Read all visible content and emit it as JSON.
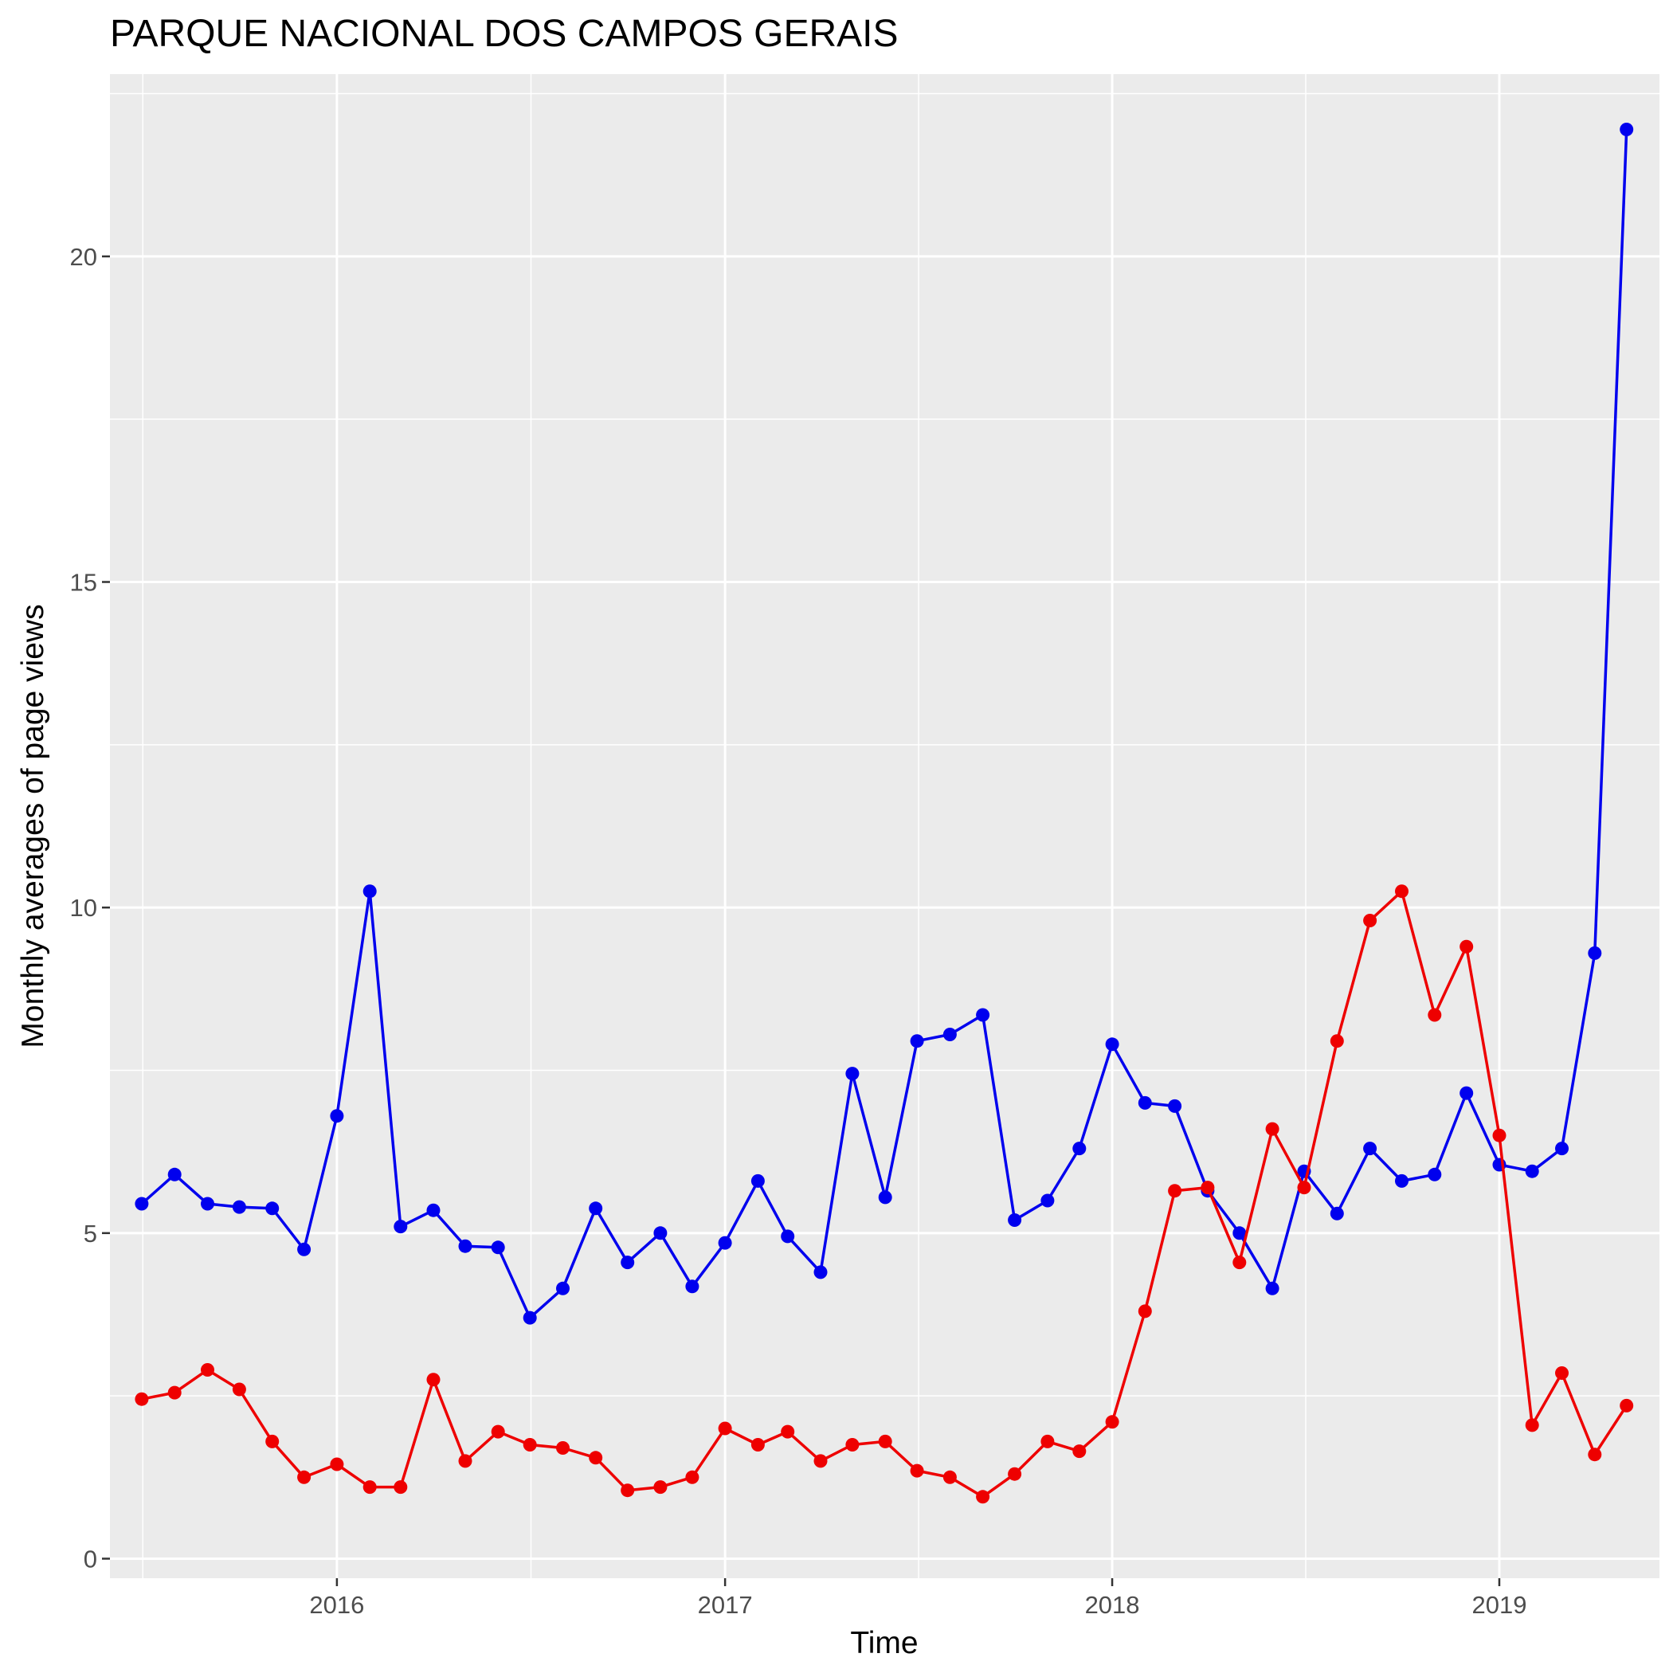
{
  "chart_data": {
    "type": "line",
    "title": "PARQUE NACIONAL DOS CAMPOS GERAIS",
    "xlabel": "Time",
    "ylabel": "Monthly averages of page views",
    "xlim": [
      "2015-06-01",
      "2019-06-01"
    ],
    "ylim": [
      -0.3,
      22.8
    ],
    "x_ticks": [
      {
        "value": "2016-01-01",
        "label": "2016"
      },
      {
        "value": "2017-01-01",
        "label": "2017"
      },
      {
        "value": "2018-01-01",
        "label": "2018"
      },
      {
        "value": "2019-01-01",
        "label": "2019"
      }
    ],
    "y_ticks": [
      {
        "value": 0,
        "label": "0"
      },
      {
        "value": 5,
        "label": "5"
      },
      {
        "value": 10,
        "label": "10"
      },
      {
        "value": 15,
        "label": "15"
      },
      {
        "value": 20,
        "label": "20"
      }
    ],
    "grid": true,
    "legend": "none",
    "x": [
      "2015-07",
      "2015-08",
      "2015-09",
      "2015-10",
      "2015-11",
      "2015-12",
      "2016-01",
      "2016-02",
      "2016-03",
      "2016-04",
      "2016-05",
      "2016-06",
      "2016-07",
      "2016-08",
      "2016-09",
      "2016-10",
      "2016-11",
      "2016-12",
      "2017-01",
      "2017-02",
      "2017-03",
      "2017-04",
      "2017-05",
      "2017-06",
      "2017-07",
      "2017-08",
      "2017-09",
      "2017-10",
      "2017-11",
      "2017-12",
      "2018-01",
      "2018-02",
      "2018-03",
      "2018-04",
      "2018-05",
      "2018-06",
      "2018-07",
      "2018-08",
      "2018-09",
      "2018-10",
      "2018-11",
      "2018-12",
      "2019-01",
      "2019-02",
      "2019-03",
      "2019-04",
      "2019-05"
    ],
    "series": [
      {
        "color": "#0000ee",
        "values": [
          5.45,
          5.9,
          5.45,
          5.4,
          5.38,
          4.75,
          6.8,
          10.25,
          5.1,
          5.35,
          4.8,
          4.78,
          3.7,
          4.15,
          5.38,
          4.55,
          5.0,
          4.18,
          4.85,
          5.8,
          4.95,
          4.4,
          7.45,
          5.55,
          7.95,
          8.05,
          8.35,
          5.2,
          5.5,
          6.3,
          7.9,
          7.0,
          6.95,
          5.65,
          5.0,
          4.15,
          5.95,
          5.3,
          6.3,
          5.8,
          5.9,
          7.15,
          6.05,
          5.95,
          6.3,
          9.3,
          21.95
        ]
      },
      {
        "color": "#ee0000",
        "values": [
          2.45,
          2.55,
          2.9,
          2.6,
          1.8,
          1.25,
          1.45,
          1.1,
          1.1,
          2.75,
          1.5,
          1.95,
          1.75,
          1.7,
          1.55,
          1.05,
          1.1,
          1.25,
          2.0,
          1.75,
          1.95,
          1.5,
          1.75,
          1.8,
          1.35,
          1.25,
          0.95,
          1.3,
          1.8,
          1.65,
          2.1,
          3.8,
          5.65,
          5.7,
          4.55,
          6.6,
          5.7,
          7.95,
          9.8,
          10.25,
          8.35,
          9.4,
          6.5,
          2.05,
          2.85,
          1.6,
          2.35
        ]
      }
    ]
  }
}
